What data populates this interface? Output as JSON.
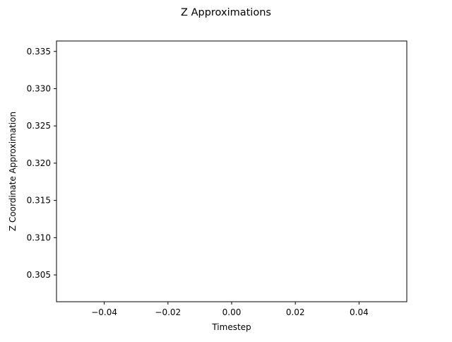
{
  "chart_data": {
    "type": "line",
    "title": "Z Approximations",
    "xlabel": "Timestep",
    "ylabel": "Z Coordinate Approximation",
    "xlim": [
      -0.055,
      0.055
    ],
    "ylim": [
      0.3014,
      0.3364
    ],
    "x_ticks": [
      -0.04,
      -0.02,
      0.0,
      0.02,
      0.04
    ],
    "x_tick_labels": [
      "−0.04",
      "−0.02",
      "0.00",
      "0.02",
      "0.04"
    ],
    "y_ticks": [
      0.305,
      0.31,
      0.315,
      0.32,
      0.325,
      0.33,
      0.335
    ],
    "y_tick_labels": [
      "0.305",
      "0.310",
      "0.315",
      "0.320",
      "0.325",
      "0.330",
      "0.335"
    ],
    "grid": false,
    "series": [
      {
        "x": [],
        "y": [],
        "color": "#1f77b4"
      }
    ]
  }
}
